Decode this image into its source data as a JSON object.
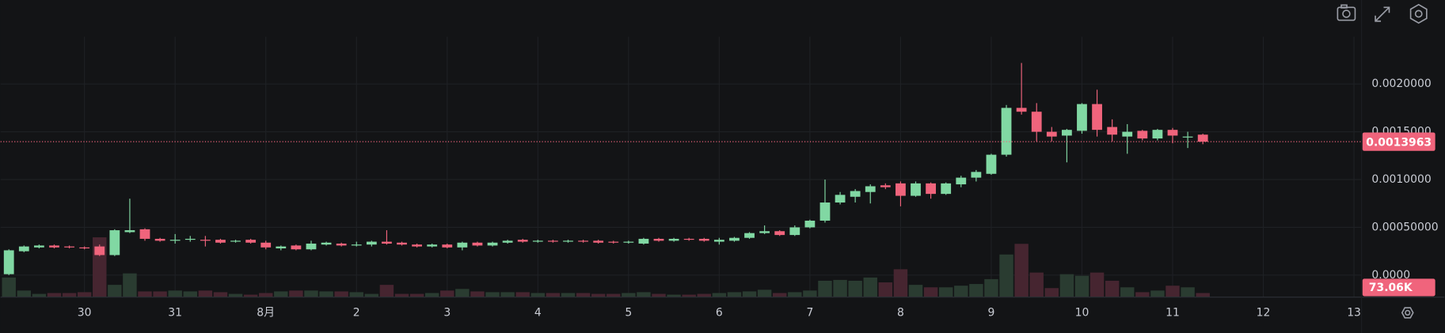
{
  "chart_data": {
    "type": "candlestick",
    "x": [
      -20,
      -16,
      -12,
      -8,
      -4,
      0,
      4,
      8,
      12,
      16,
      20,
      24,
      28,
      32,
      36,
      40,
      44,
      48,
      52,
      56,
      60,
      64,
      68,
      72,
      76,
      80,
      84,
      88,
      92,
      96,
      100,
      104,
      108,
      112,
      116,
      120,
      124,
      128,
      132,
      136,
      140,
      144,
      148,
      152,
      156,
      160,
      164,
      168,
      172,
      176,
      180,
      184,
      188,
      192,
      196,
      200,
      204,
      208,
      212,
      216,
      220,
      224,
      228,
      232,
      236,
      240,
      244,
      248,
      252,
      256,
      260,
      264,
      268,
      272,
      276,
      280,
      284,
      288,
      292,
      296
    ],
    "open": [
      1e-05,
      0.00025,
      0.00029,
      0.00031,
      0.0003,
      0.00029,
      0.0003,
      0.00021,
      0.00045,
      0.00048,
      0.00038,
      0.00036,
      0.00037,
      0.00037,
      0.00037,
      0.00035,
      0.00037,
      0.00034,
      0.00028,
      0.00031,
      0.00027,
      0.00032,
      0.00033,
      0.00031,
      0.00032,
      0.00035,
      0.00034,
      0.00032,
      0.0003,
      0.00032,
      0.00029,
      0.00034,
      0.00031,
      0.00034,
      0.00037,
      0.00035,
      0.00036,
      0.00035,
      0.00036,
      0.00036,
      0.00035,
      0.00034,
      0.00033,
      0.00038,
      0.00036,
      0.00038,
      0.00038,
      0.00035,
      0.00036,
      0.00039,
      0.00044,
      0.00046,
      0.00042,
      0.0005,
      0.00057,
      0.00076,
      0.00082,
      0.00087,
      0.00094,
      0.00096,
      0.00083,
      0.00096,
      0.00085,
      0.00095,
      0.00102,
      0.00106,
      0.00126,
      0.00175,
      0.00171,
      0.0015,
      0.00146,
      0.00151,
      0.00179,
      0.00155,
      0.00145,
      0.00151,
      0.00143,
      0.00152,
      0.00144,
      0.00147
    ],
    "high": [
      0.00027,
      0.00031,
      0.00032,
      0.00032,
      0.00031,
      0.0003,
      0.00032,
      0.00048,
      0.0008,
      0.00049,
      0.00039,
      0.00043,
      0.00041,
      0.00041,
      0.00038,
      0.00037,
      0.00038,
      0.00036,
      0.00031,
      0.00032,
      0.00036,
      0.00035,
      0.00034,
      0.00035,
      0.00036,
      0.00047,
      0.00035,
      0.00033,
      0.00033,
      0.00033,
      0.00035,
      0.00035,
      0.00035,
      0.00037,
      0.00038,
      0.00037,
      0.00037,
      0.00037,
      0.00037,
      0.00037,
      0.00036,
      0.00036,
      0.00039,
      0.00039,
      0.00039,
      0.00039,
      0.00039,
      0.00039,
      0.0004,
      0.00045,
      0.00052,
      0.00047,
      0.00052,
      0.00058,
      0.001,
      0.00087,
      0.0009,
      0.00095,
      0.00096,
      0.00098,
      0.00098,
      0.00097,
      0.00097,
      0.00104,
      0.0011,
      0.00127,
      0.00178,
      0.00222,
      0.0018,
      0.00155,
      0.00153,
      0.0018,
      0.00194,
      0.00163,
      0.00158,
      0.00152,
      0.00153,
      0.00154,
      0.0015,
      0.00148
    ],
    "low": [
      0,
      0.00024,
      0.00028,
      0.00028,
      0.00028,
      0.00027,
      0.0002,
      0.0002,
      0.00044,
      0.00036,
      0.00035,
      0.00033,
      0.00035,
      0.0003,
      0.00033,
      0.00034,
      0.00033,
      0.00027,
      0.00026,
      0.00026,
      0.00026,
      0.00031,
      0.0003,
      0.0003,
      0.0003,
      0.00032,
      0.00031,
      0.00029,
      0.00029,
      0.00028,
      0.00026,
      0.0003,
      0.0003,
      0.00033,
      0.00034,
      0.00034,
      0.00034,
      0.00034,
      0.00034,
      0.00033,
      0.00033,
      0.00033,
      0.00032,
      0.00035,
      0.00035,
      0.00036,
      0.00035,
      0.00032,
      0.00035,
      0.00038,
      0.00043,
      0.00041,
      0.00041,
      0.00049,
      0.00055,
      0.00074,
      0.00076,
      0.00075,
      0.0009,
      0.00072,
      0.00082,
      0.0008,
      0.00084,
      0.00092,
      0.00098,
      0.00105,
      0.00124,
      0.00168,
      0.0014,
      0.0014,
      0.00118,
      0.00148,
      0.00145,
      0.0014,
      0.00127,
      0.00141,
      0.00141,
      0.00138,
      0.00133,
      0.00137
    ],
    "close": [
      0.00026,
      0.0003,
      0.00031,
      0.00029,
      0.00029,
      0.00028,
      0.00021,
      0.00047,
      0.00047,
      0.00038,
      0.00036,
      0.00037,
      0.00038,
      0.00036,
      0.00034,
      0.00036,
      0.00034,
      0.00029,
      0.0003,
      0.00027,
      0.00033,
      0.00034,
      0.00031,
      0.00032,
      0.00035,
      0.00033,
      0.00032,
      0.0003,
      0.00032,
      0.00029,
      0.00034,
      0.00031,
      0.00034,
      0.00036,
      0.00035,
      0.00036,
      0.00035,
      0.00036,
      0.00035,
      0.00034,
      0.00034,
      0.00035,
      0.00038,
      0.00036,
      0.00038,
      0.00037,
      0.00036,
      0.00037,
      0.00039,
      0.00044,
      0.00046,
      0.00042,
      0.0005,
      0.00057,
      0.00076,
      0.00084,
      0.00088,
      0.00093,
      0.00092,
      0.00083,
      0.00096,
      0.00085,
      0.00096,
      0.00102,
      0.00108,
      0.00126,
      0.00175,
      0.00171,
      0.0015,
      0.00145,
      0.00152,
      0.00179,
      0.00152,
      0.00147,
      0.0015,
      0.00143,
      0.00152,
      0.00146,
      0.00145,
      0.0013963
    ],
    "volume": [
      350000,
      117000,
      58000,
      73000,
      73000,
      88000,
      1066000,
      219000,
      423000,
      102000,
      102000,
      117000,
      102000,
      117000,
      88000,
      58000,
      44000,
      73000,
      102000,
      117000,
      117000,
      102000,
      102000,
      88000,
      58000,
      219000,
      58000,
      58000,
      73000,
      117000,
      146000,
      102000,
      88000,
      88000,
      88000,
      73000,
      73000,
      73000,
      73000,
      58000,
      58000,
      73000,
      88000,
      58000,
      44000,
      44000,
      58000,
      73000,
      88000,
      102000,
      131000,
      73000,
      88000,
      117000,
      292000,
      307000,
      292000,
      350000,
      263000,
      497000,
      219000,
      175000,
      175000,
      204000,
      234000,
      321000,
      760000,
      950000,
      438000,
      161000,
      409000,
      380000,
      438000,
      292000,
      175000,
      88000,
      117000,
      204000,
      175000,
      73060
    ],
    "volume_last_label": "73.06K",
    "up_color": "#81d8a3",
    "down_color": "#f0647c",
    "up_volume_color": "#2a3c31",
    "down_volume_color": "#462530",
    "xlim": [
      -22.2,
      338
    ],
    "xticks": [
      {
        "value": 0,
        "label": "30"
      },
      {
        "value": 24,
        "label": "31"
      },
      {
        "value": 48,
        "label": "8月"
      },
      {
        "value": 72,
        "label": "2"
      },
      {
        "value": 96,
        "label": "3"
      },
      {
        "value": 120,
        "label": "4"
      },
      {
        "value": 144,
        "label": "5"
      },
      {
        "value": 168,
        "label": "6"
      },
      {
        "value": 192,
        "label": "7"
      },
      {
        "value": 216,
        "label": "8"
      },
      {
        "value": 240,
        "label": "9"
      },
      {
        "value": 264,
        "label": "10"
      },
      {
        "value": 288,
        "label": "11"
      },
      {
        "value": 312,
        "label": "12"
      },
      {
        "value": 336,
        "label": "13"
      }
    ],
    "ylim": [
      -0.00023,
      0.00259
    ],
    "yticks": [
      {
        "value": 0.002,
        "label": "0.0020000"
      },
      {
        "value": 0.0015,
        "label": "0.0015000"
      },
      {
        "value": 0.001,
        "label": "0.0010000"
      },
      {
        "value": 0.0005,
        "label": "0.00050000"
      },
      {
        "value": 0,
        "label": "0.0000"
      }
    ],
    "grid": true
  }
}
